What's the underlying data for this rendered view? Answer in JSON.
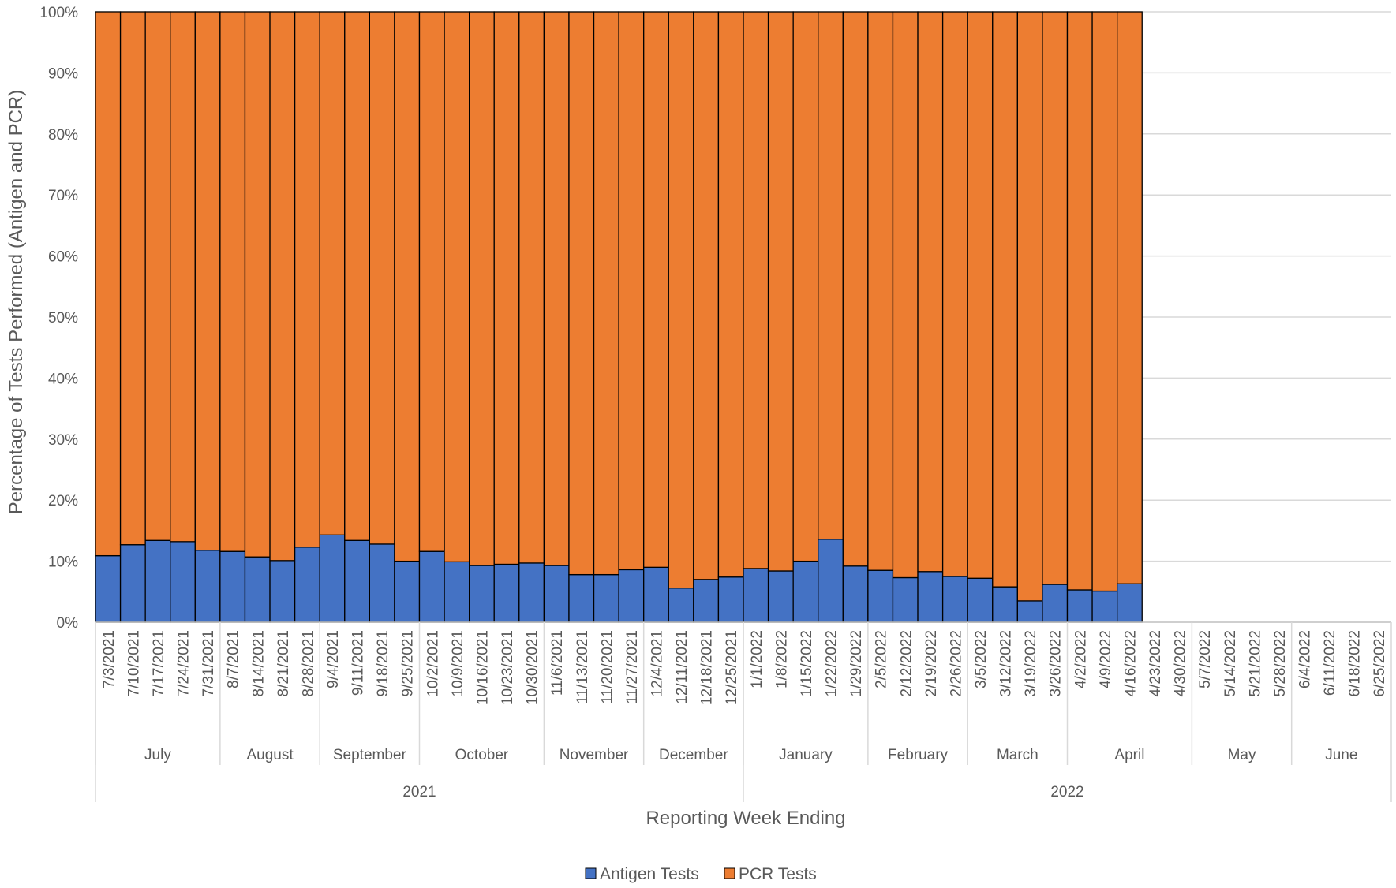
{
  "chart_data": {
    "type": "bar",
    "stacked": true,
    "title": "",
    "xlabel": "Reporting Week Ending",
    "ylabel": "Percentage of Tests Performed (Antigen and PCR)",
    "ylim": [
      0,
      100
    ],
    "yticks": [
      "0%",
      "10%",
      "20%",
      "30%",
      "40%",
      "50%",
      "60%",
      "70%",
      "80%",
      "90%",
      "100%"
    ],
    "grid": true,
    "legend_position": "bottom",
    "categories": [
      "7/3/2021",
      "7/10/2021",
      "7/17/2021",
      "7/24/2021",
      "7/31/2021",
      "8/7/2021",
      "8/14/2021",
      "8/21/2021",
      "8/28/2021",
      "9/4/2021",
      "9/11/2021",
      "9/18/2021",
      "9/25/2021",
      "10/2/2021",
      "10/9/2021",
      "10/16/2021",
      "10/23/2021",
      "10/30/2021",
      "11/6/2021",
      "11/13/2021",
      "11/20/2021",
      "11/27/2021",
      "12/4/2021",
      "12/11/2021",
      "12/18/2021",
      "12/25/2021",
      "1/1/2022",
      "1/8/2022",
      "1/15/2022",
      "1/22/2022",
      "1/29/2022",
      "2/5/2022",
      "2/12/2022",
      "2/19/2022",
      "2/26/2022",
      "3/5/2022",
      "3/12/2022",
      "3/19/2022",
      "3/26/2022",
      "4/2/2022",
      "4/9/2022",
      "4/16/2022",
      "4/23/2022",
      "4/30/2022",
      "5/7/2022",
      "5/14/2022",
      "5/21/2022",
      "5/28/2022",
      "6/4/2022",
      "6/11/2022",
      "6/18/2022",
      "6/25/2022"
    ],
    "months": [
      {
        "label": "July",
        "start": 0,
        "count": 5
      },
      {
        "label": "August",
        "start": 5,
        "count": 4
      },
      {
        "label": "September",
        "start": 9,
        "count": 4
      },
      {
        "label": "October",
        "start": 13,
        "count": 5
      },
      {
        "label": "November",
        "start": 18,
        "count": 4
      },
      {
        "label": "December",
        "start": 22,
        "count": 4
      },
      {
        "label": "January",
        "start": 26,
        "count": 5
      },
      {
        "label": "February",
        "start": 31,
        "count": 4
      },
      {
        "label": "March",
        "start": 35,
        "count": 4
      },
      {
        "label": "April",
        "start": 39,
        "count": 5
      },
      {
        "label": "May",
        "start": 44,
        "count": 4
      },
      {
        "label": "June",
        "start": 48,
        "count": 4
      }
    ],
    "years": [
      {
        "label": "2021",
        "start": 0,
        "count": 26
      },
      {
        "label": "2022",
        "start": 26,
        "count": 26
      }
    ],
    "series": [
      {
        "name": "Antigen Tests",
        "color": "#4472C4",
        "values": [
          10.9,
          12.7,
          13.4,
          13.2,
          11.8,
          11.6,
          10.7,
          10.1,
          12.3,
          14.3,
          13.4,
          12.8,
          10.0,
          11.6,
          9.9,
          9.3,
          9.5,
          9.7,
          9.3,
          7.8,
          7.8,
          8.6,
          9.0,
          5.6,
          7.0,
          7.4,
          8.8,
          8.4,
          10.0,
          13.6,
          9.2,
          8.5,
          7.3,
          8.3,
          7.5,
          7.2,
          5.8,
          3.5,
          6.2,
          5.3,
          5.1,
          6.3,
          null,
          null,
          null,
          null,
          null,
          null,
          null,
          null,
          null,
          null
        ]
      },
      {
        "name": "PCR Tests",
        "color": "#ED7D31",
        "values": [
          89.1,
          87.3,
          86.6,
          86.8,
          88.2,
          88.4,
          89.3,
          89.9,
          87.7,
          85.7,
          86.6,
          87.2,
          90.0,
          88.4,
          90.1,
          90.7,
          90.5,
          90.3,
          90.7,
          92.2,
          92.2,
          91.4,
          91.0,
          94.4,
          93.0,
          92.6,
          91.2,
          91.6,
          90.0,
          86.4,
          90.8,
          91.5,
          92.7,
          91.7,
          92.5,
          92.8,
          94.2,
          96.5,
          93.8,
          94.7,
          94.9,
          93.7,
          null,
          null,
          null,
          null,
          null,
          null,
          null,
          null,
          null,
          null
        ]
      }
    ]
  }
}
